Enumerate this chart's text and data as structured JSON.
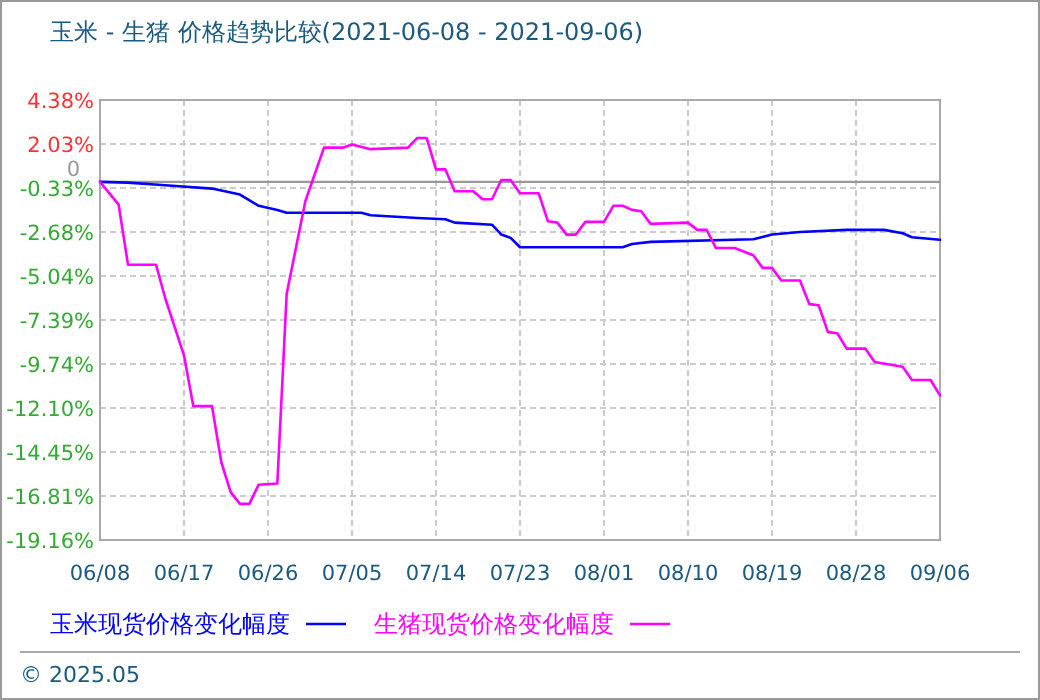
{
  "chart_data": {
    "type": "line",
    "title": "玉米 - 生猪 价格趋势比较(2021-06-08 - 2021-09-06)",
    "ylim": [
      -19.16,
      4.38
    ],
    "yticks": [
      {
        "value": 4.38,
        "label": "4.38%"
      },
      {
        "value": 2.03,
        "label": "2.03%"
      },
      {
        "value": -0.33,
        "label": "-0.33%"
      },
      {
        "value": -2.68,
        "label": "-2.68%"
      },
      {
        "value": -5.04,
        "label": "-5.04%"
      },
      {
        "value": -7.39,
        "label": "-7.39%"
      },
      {
        "value": -9.74,
        "label": "-9.74%"
      },
      {
        "value": -12.1,
        "label": "-12.10%"
      },
      {
        "value": -14.45,
        "label": "-14.45%"
      },
      {
        "value": -16.81,
        "label": "-16.81%"
      },
      {
        "value": -19.16,
        "label": "-19.16%"
      }
    ],
    "xlim": [
      "2021-06-08",
      "2021-09-06"
    ],
    "xticks": [
      {
        "value": "2021-06-08",
        "label": "06/08"
      },
      {
        "value": "2021-06-17",
        "label": "06/17"
      },
      {
        "value": "2021-06-26",
        "label": "06/26"
      },
      {
        "value": "2021-07-05",
        "label": "07/05"
      },
      {
        "value": "2021-07-14",
        "label": "07/14"
      },
      {
        "value": "2021-07-23",
        "label": "07/23"
      },
      {
        "value": "2021-08-01",
        "label": "08/01"
      },
      {
        "value": "2021-08-10",
        "label": "08/10"
      },
      {
        "value": "2021-08-19",
        "label": "08/19"
      },
      {
        "value": "2021-08-28",
        "label": "08/28"
      },
      {
        "value": "2021-09-06",
        "label": "09/06"
      }
    ],
    "grid": true,
    "legend": "bottom",
    "marker": "none",
    "line_style": "solid",
    "ref_lines": [
      {
        "axis": "y",
        "value": 0,
        "label": "0",
        "color": "#999999"
      }
    ],
    "annotations": [
      "© 2025.05"
    ],
    "series": [
      {
        "name": "玉米现货价格变化幅度",
        "color": "#0000ff",
        "x": [
          "2021-06-08",
          "2021-06-11",
          "2021-06-15",
          "2021-06-20",
          "2021-06-23",
          "2021-06-25",
          "2021-06-27",
          "2021-06-28",
          "2021-07-06",
          "2021-07-07",
          "2021-07-12",
          "2021-07-15",
          "2021-07-16",
          "2021-07-20",
          "2021-07-21",
          "2021-07-22",
          "2021-07-23",
          "2021-08-03",
          "2021-08-04",
          "2021-08-06",
          "2021-08-17",
          "2021-08-19",
          "2021-08-22",
          "2021-08-27",
          "2021-08-31",
          "2021-09-02",
          "2021-09-03",
          "2021-09-06"
        ],
        "values": [
          0,
          -0.04,
          -0.18,
          -0.36,
          -0.68,
          -1.28,
          -1.5,
          -1.65,
          -1.65,
          -1.79,
          -1.93,
          -2.0,
          -2.18,
          -2.29,
          -2.82,
          -3.0,
          -3.5,
          -3.5,
          -3.32,
          -3.21,
          -3.07,
          -2.82,
          -2.68,
          -2.57,
          -2.57,
          -2.75,
          -2.96,
          -3.1
        ]
      },
      {
        "name": "生猪现货价格变化幅度",
        "color": "#ff00ff",
        "x": [
          "2021-06-08",
          "2021-06-10",
          "2021-06-11",
          "2021-06-14",
          "2021-06-15",
          "2021-06-17",
          "2021-06-18",
          "2021-06-20",
          "2021-06-21",
          "2021-06-22",
          "2021-06-23",
          "2021-06-24",
          "2021-06-25",
          "2021-06-27",
          "2021-06-28",
          "2021-06-30",
          "2021-07-02",
          "2021-07-04",
          "2021-07-05",
          "2021-07-07",
          "2021-07-11",
          "2021-07-12",
          "2021-07-13",
          "2021-07-14",
          "2021-07-15",
          "2021-07-16",
          "2021-07-18",
          "2021-07-19",
          "2021-07-20",
          "2021-07-21",
          "2021-07-22",
          "2021-07-23",
          "2021-07-25",
          "2021-07-26",
          "2021-07-27",
          "2021-07-28",
          "2021-07-29",
          "2021-07-30",
          "2021-08-01",
          "2021-08-02",
          "2021-08-03",
          "2021-08-04",
          "2021-08-05",
          "2021-08-06",
          "2021-08-10",
          "2021-08-11",
          "2021-08-12",
          "2021-08-13",
          "2021-08-15",
          "2021-08-17",
          "2021-08-18",
          "2021-08-19",
          "2021-08-20",
          "2021-08-22",
          "2021-08-23",
          "2021-08-24",
          "2021-08-25",
          "2021-08-26",
          "2021-08-27",
          "2021-08-29",
          "2021-08-30",
          "2021-09-02",
          "2021-09-03",
          "2021-09-05",
          "2021-09-06"
        ],
        "values": [
          0,
          -1.22,
          -4.43,
          -4.43,
          -6.24,
          -9.28,
          -12.0,
          -12.0,
          -15.0,
          -16.6,
          -17.23,
          -17.23,
          -16.2,
          -16.14,
          -6.0,
          -1.04,
          1.83,
          1.83,
          2.0,
          1.75,
          1.83,
          2.35,
          2.35,
          0.67,
          0.67,
          -0.5,
          -0.5,
          -0.93,
          -0.93,
          0.1,
          0.1,
          -0.61,
          -0.61,
          -2.11,
          -2.18,
          -2.82,
          -2.82,
          -2.14,
          -2.14,
          -1.28,
          -1.28,
          -1.5,
          -1.57,
          -2.25,
          -2.18,
          -2.57,
          -2.57,
          -3.54,
          -3.54,
          -3.93,
          -4.6,
          -4.6,
          -5.28,
          -5.28,
          -6.54,
          -6.6,
          -8.04,
          -8.1,
          -8.92,
          -8.92,
          -9.64,
          -9.89,
          -10.6,
          -10.6,
          -11.42
        ]
      }
    ]
  }
}
